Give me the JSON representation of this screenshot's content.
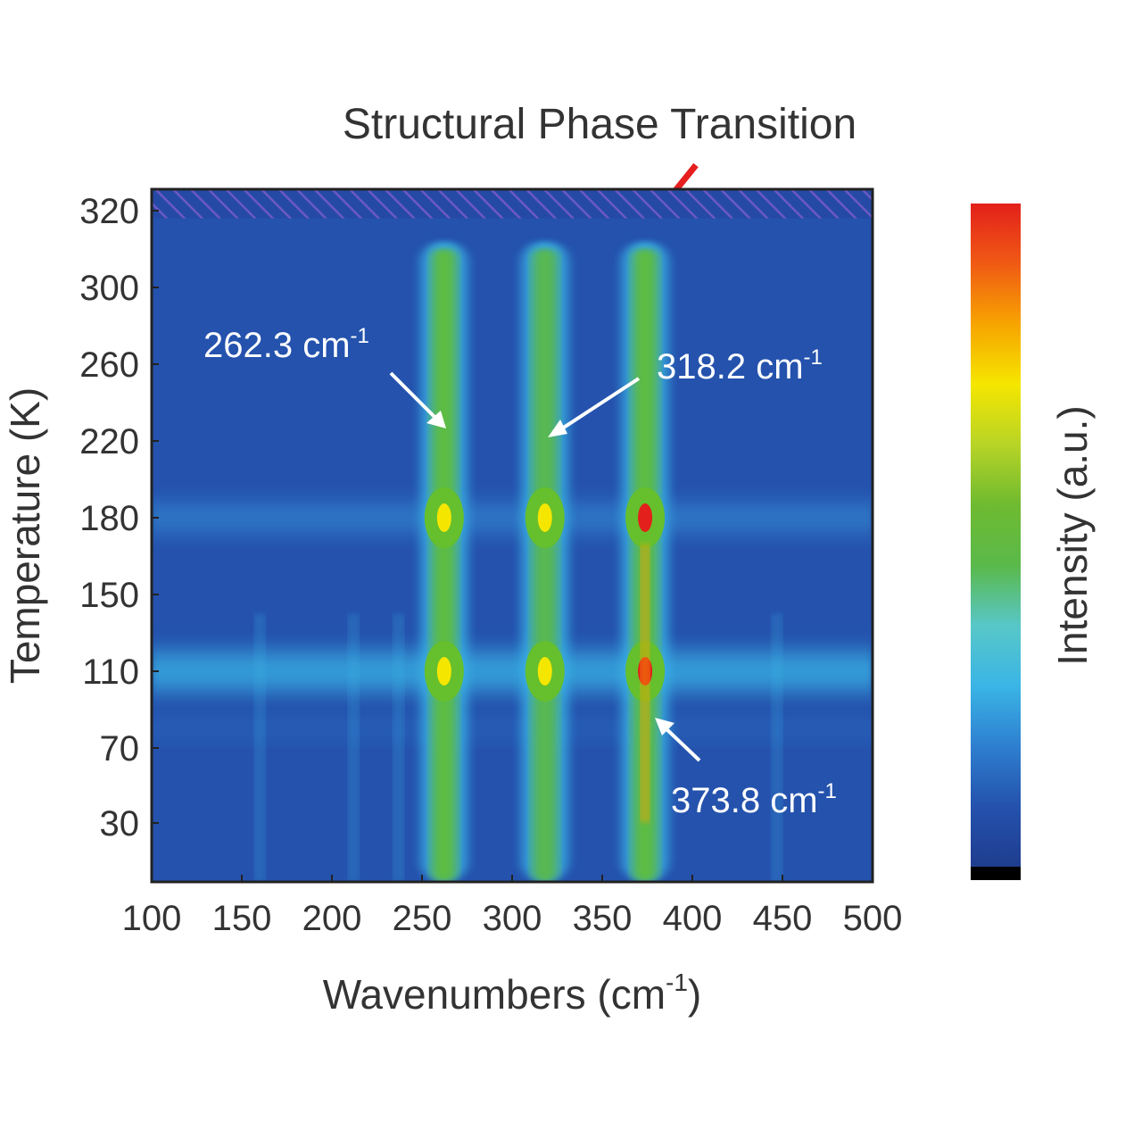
{
  "chart_data": {
    "type": "heatmap",
    "title": "",
    "xlabel": "Wavenumbers (cm",
    "xlabel_sup": "-1",
    "xlabel_suffix": ")",
    "ylabel": "Temperature (K)",
    "colorbar_label": "Intensity (a.u.)",
    "xlim": [
      100,
      500
    ],
    "ylim": [
      0,
      330
    ],
    "x_ticks": [
      100,
      150,
      200,
      250,
      300,
      350,
      400,
      450,
      500
    ],
    "y_ticks": [
      30,
      70,
      110,
      150,
      180,
      220,
      260,
      300,
      320
    ],
    "temperatures": [
      10,
      30,
      50,
      70,
      90,
      110,
      130,
      150,
      180,
      200,
      220,
      260,
      300,
      310
    ],
    "peaks": [
      {
        "label": "262.3 cm",
        "sup": "-1",
        "center": 262.3
      },
      {
        "label": "318.2 cm",
        "sup": "-1",
        "center": 318.2
      },
      {
        "label": "373.8 cm",
        "sup": "-1",
        "center": 373.8
      }
    ],
    "minor_peaks": [
      160,
      212,
      237,
      447
    ],
    "phase_transition": {
      "label": "Structural Phase Transition",
      "temperature_min": 318,
      "temperature_max": 330
    },
    "colormap": [
      "#000000",
      "#1f3d8f",
      "#2452ad",
      "#2e7fd0",
      "#3ab5e6",
      "#58c7c8",
      "#5ab94a",
      "#6fba30",
      "#b8d426",
      "#f5e600",
      "#f7a400",
      "#f05a14",
      "#e3201b"
    ],
    "colors": {
      "arrow_phase": "#e61e1e",
      "annotation": "#ffffff",
      "background_blue": "#2452ad"
    }
  }
}
